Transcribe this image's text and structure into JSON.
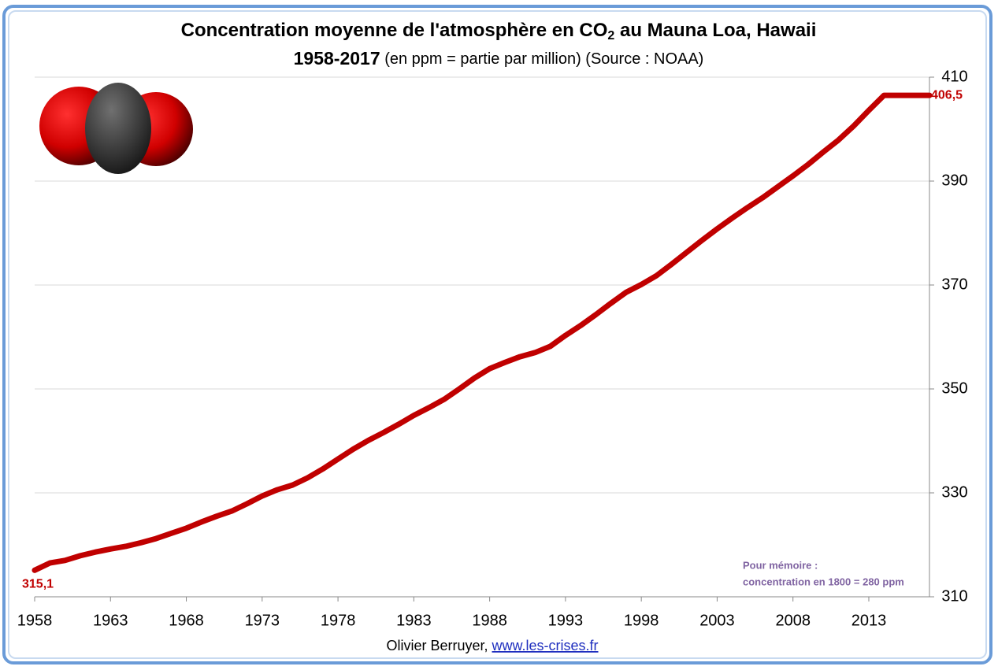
{
  "chart_data": {
    "type": "line",
    "title": [
      "Concentration moyenne de l'atmosphère en CO",
      "2",
      " au Mauna Loa, Hawaii"
    ],
    "subtitle": [
      "1958-2017",
      " (en ppm = partie par million)",
      " (Source : NOAA)"
    ],
    "annotation": [
      "Pour mémoire :",
      "concentration en 1800 = 280 ppm"
    ],
    "footer": {
      "author": "Olivier Berruyer,",
      "link": "www.les-crises.fr"
    },
    "x": [
      1958,
      1959,
      1960,
      1961,
      1962,
      1963,
      1964,
      1965,
      1966,
      1967,
      1968,
      1969,
      1970,
      1971,
      1972,
      1973,
      1974,
      1975,
      1976,
      1977,
      1978,
      1979,
      1980,
      1981,
      1982,
      1983,
      1984,
      1985,
      1986,
      1987,
      1988,
      1989,
      1990,
      1991,
      1992,
      1993,
      1994,
      1995,
      1996,
      1997,
      1998,
      1999,
      2000,
      2001,
      2002,
      2003,
      2004,
      2005,
      2006,
      2007,
      2008,
      2009,
      2010,
      2011,
      2012,
      2013,
      2014,
      2015,
      2016,
      2017
    ],
    "values": [
      315.1,
      316.5,
      317.0,
      317.9,
      318.6,
      319.2,
      319.7,
      320.4,
      321.2,
      322.2,
      323.2,
      324.4,
      325.5,
      326.5,
      327.9,
      329.4,
      330.6,
      331.5,
      332.9,
      334.6,
      336.5,
      338.4,
      340.1,
      341.6,
      343.2,
      344.9,
      346.4,
      348.0,
      350.0,
      352.1,
      353.9,
      355.1,
      356.2,
      357.0,
      358.2,
      360.3,
      362.2,
      364.3,
      366.5,
      368.6,
      370.1,
      371.8,
      374.0,
      376.3,
      378.6,
      380.8,
      382.9,
      384.9,
      386.8,
      388.9,
      391.0,
      393.2,
      395.6,
      397.9,
      400.6,
      403.6,
      406.5,
      406.5,
      406.5,
      406.5
    ],
    "value_labels": [
      "315,1",
      null,
      null,
      null,
      null,
      null,
      null,
      null,
      null,
      null,
      null,
      null,
      null,
      null,
      null,
      null,
      null,
      null,
      null,
      null,
      null,
      null,
      null,
      null,
      null,
      null,
      null,
      null,
      null,
      null,
      null,
      null,
      null,
      null,
      null,
      null,
      null,
      null,
      null,
      null,
      null,
      null,
      null,
      null,
      null,
      null,
      null,
      null,
      null,
      null,
      null,
      null,
      null,
      null,
      null,
      null,
      null,
      null,
      null,
      "406,5"
    ],
    "color": "#c00000",
    "xlim": [
      1958,
      2017
    ],
    "xticks": [
      1958,
      1963,
      1968,
      1973,
      1978,
      1983,
      1988,
      1993,
      1998,
      2003,
      2008,
      2013
    ],
    "ylim": [
      310,
      410
    ],
    "yticks": [
      310,
      330,
      350,
      370,
      390,
      410
    ],
    "y_axis_side": "right",
    "grid": true
  }
}
